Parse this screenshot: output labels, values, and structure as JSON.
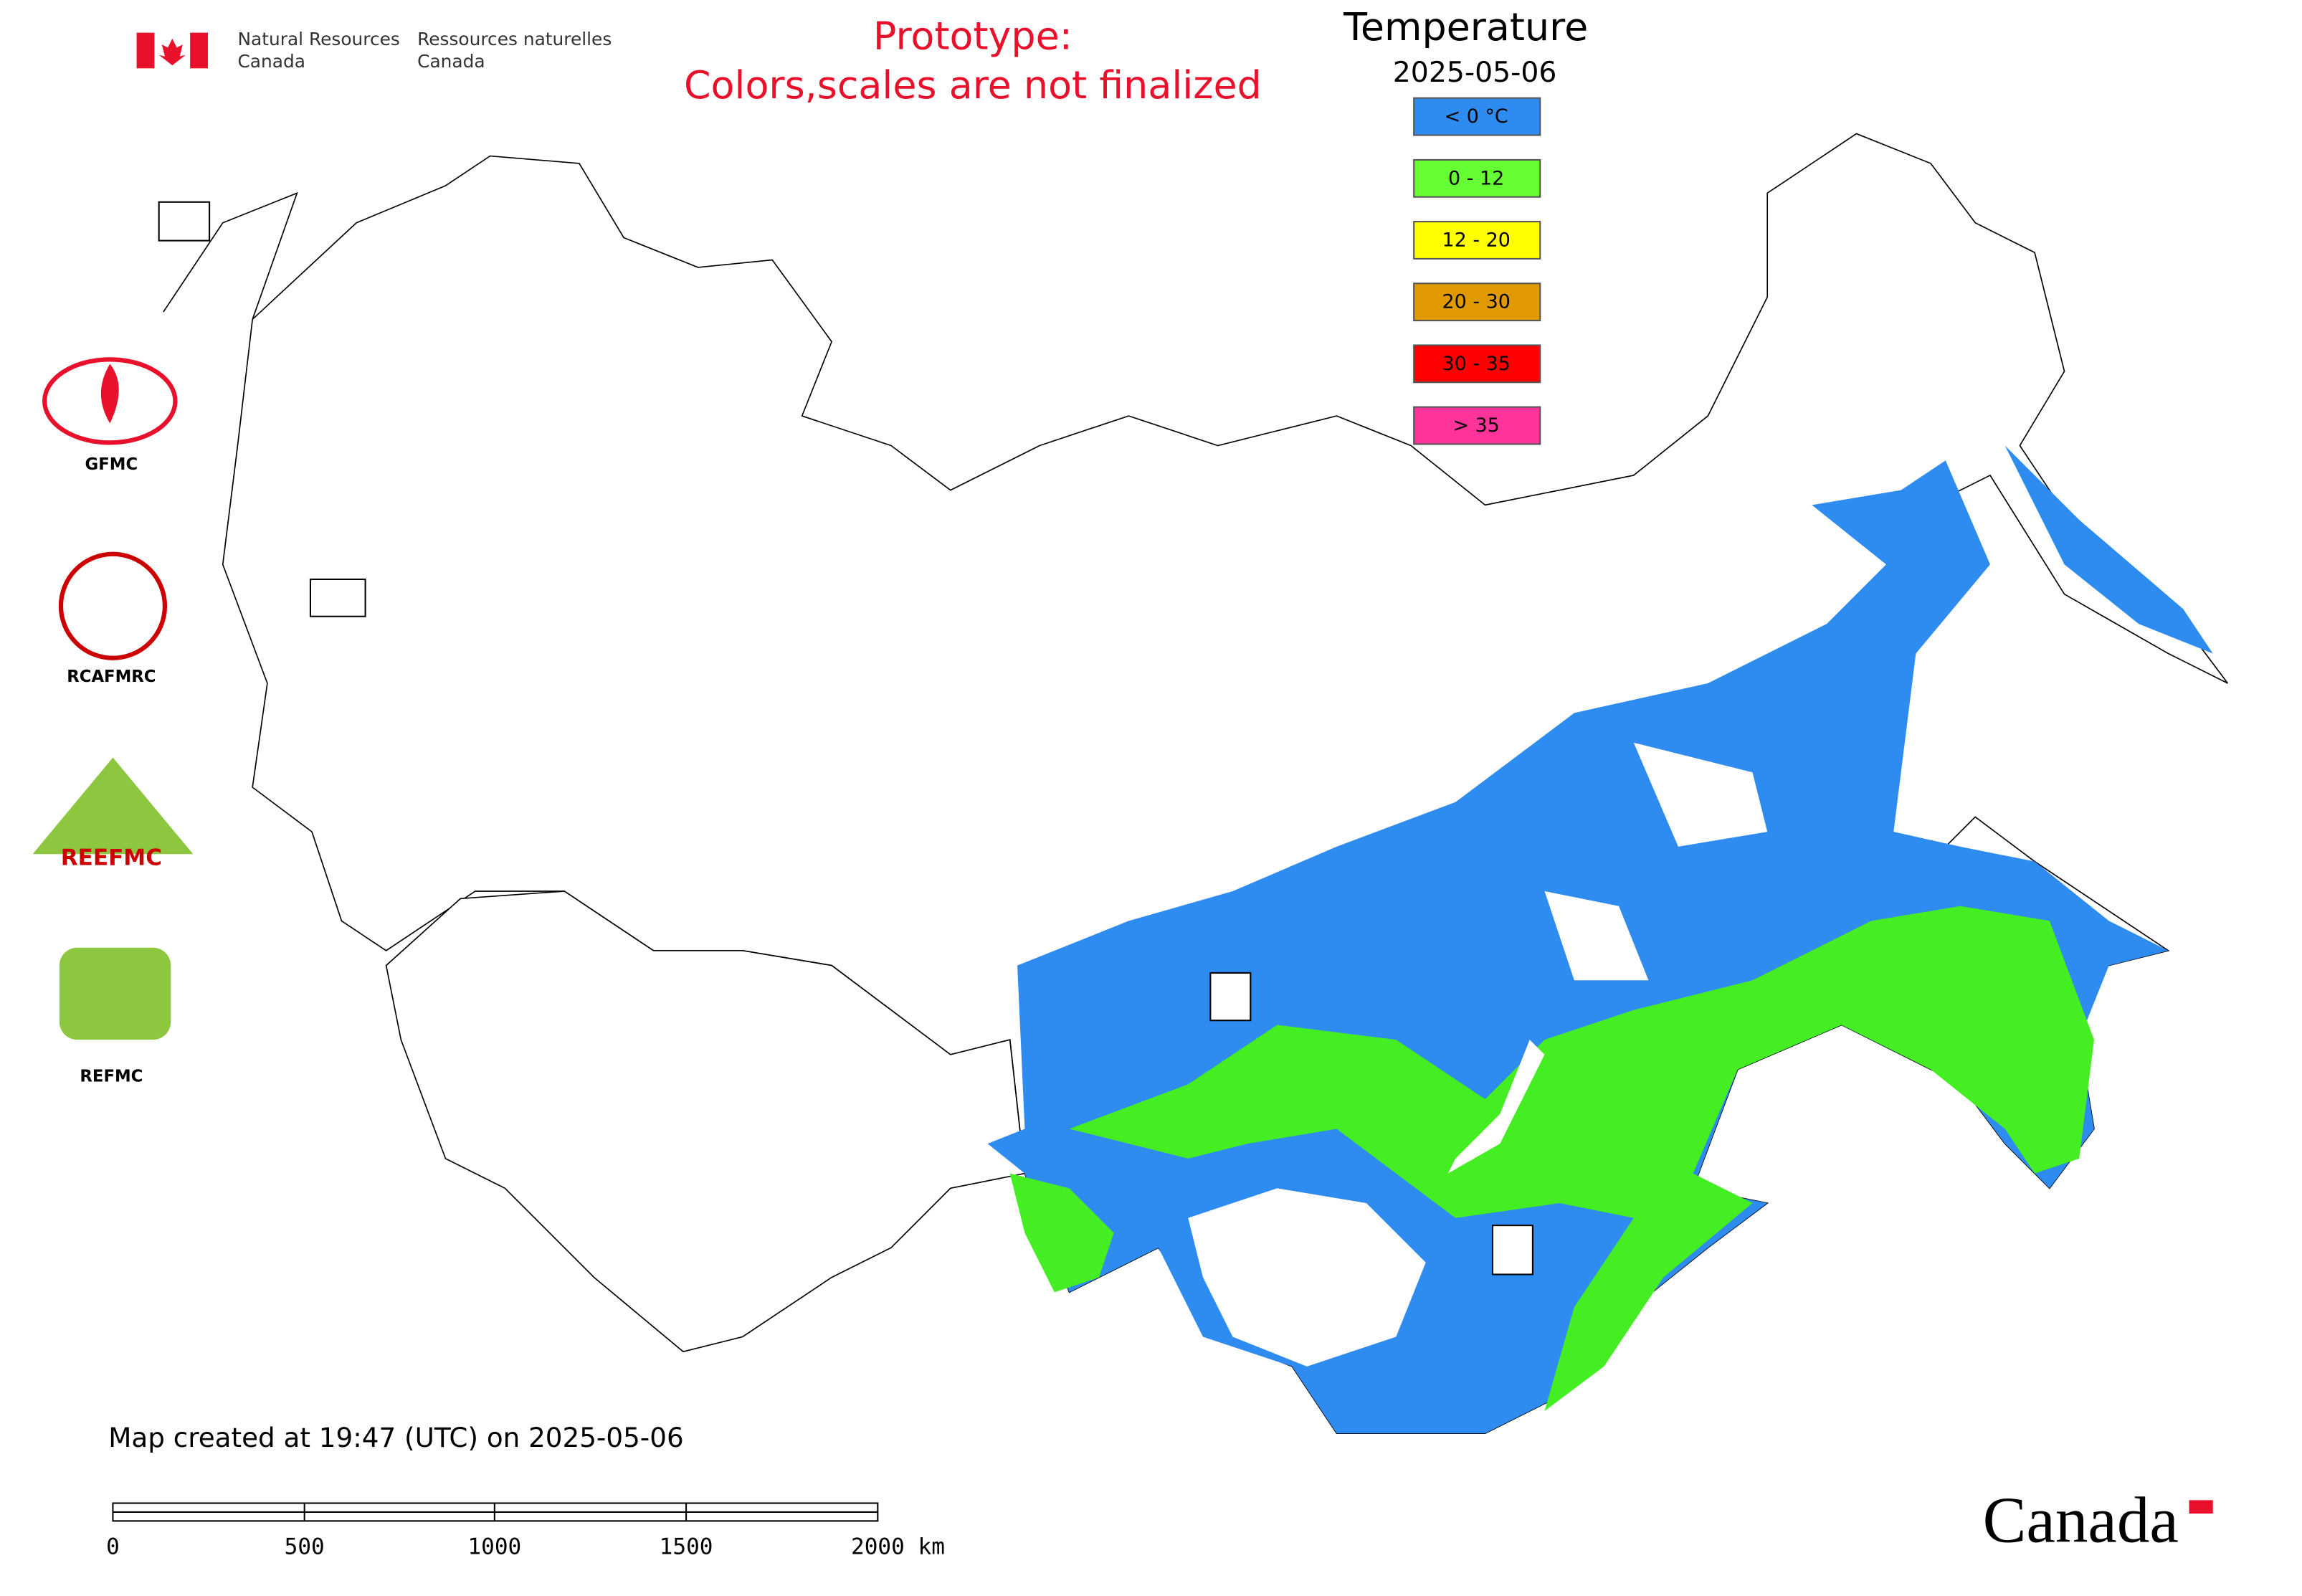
{
  "header": {
    "agency_en": [
      "Natural Resources",
      "Canada"
    ],
    "agency_fr": [
      "Ressources naturelles",
      "Canada"
    ]
  },
  "notice": [
    "Prototype:",
    "Colors,scales are not finalized"
  ],
  "legend": {
    "title": "Temperature",
    "date": "2025-05-06",
    "items": [
      {
        "label": "< 0 °C",
        "color": "#2e8bef"
      },
      {
        "label": "0 - 12",
        "color": "#66ff33"
      },
      {
        "label": "12 - 20",
        "color": "#ffff00"
      },
      {
        "label": "20 - 30",
        "color": "#e09a00"
      },
      {
        "label": "30 - 35",
        "color": "#ff0000"
      },
      {
        "label": "> 35",
        "color": "#ff3399"
      }
    ]
  },
  "logos": [
    "GFMC",
    "RCAFMRC",
    "REEFMC",
    "REFMC"
  ],
  "footer": "Map created at 19:47 (UTC) on 2025-05-06",
  "scale_bar": [
    "0",
    "500",
    "1000",
    "1500",
    "2000 km"
  ],
  "wordmark": "Canada"
}
